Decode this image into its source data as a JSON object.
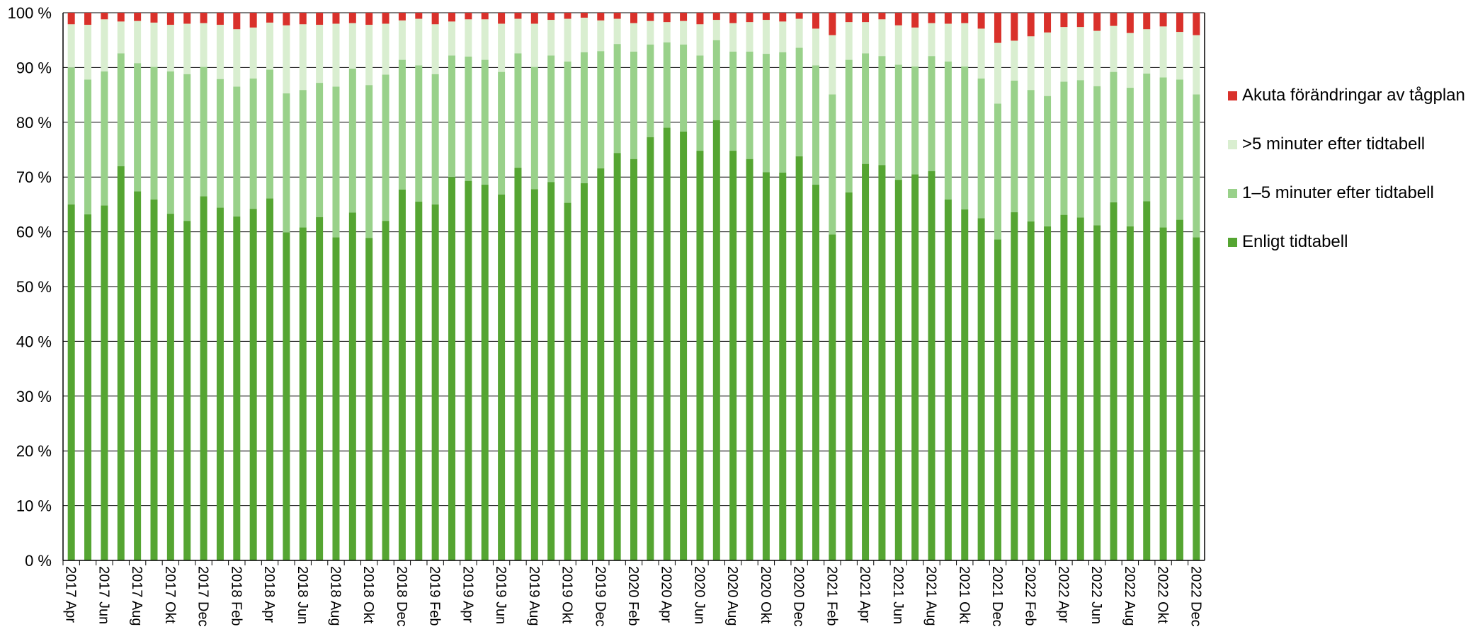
{
  "chart_data": {
    "type": "bar",
    "stacked": true,
    "title": "",
    "xlabel": "",
    "ylabel": "",
    "ylim": [
      0,
      100
    ],
    "y_ticks": [
      "0 %",
      "10 %",
      "20 %",
      "30 %",
      "40 %",
      "50 %",
      "60 %",
      "70 %",
      "80 %",
      "90 %",
      "100 %"
    ],
    "grid": "horizontal",
    "legend_position": "right",
    "categories": [
      "2017 Apr",
      "2017 Maj",
      "2017 Jun",
      "2017 Jul",
      "2017 Aug",
      "2017 Sep",
      "2017 Okt",
      "2017 Nov",
      "2017 Dec",
      "2018 Jan",
      "2018 Feb",
      "2018 Mar",
      "2018 Apr",
      "2018 Maj",
      "2018 Jun",
      "2018 Jul",
      "2018 Aug",
      "2018 Sep",
      "2018 Okt",
      "2018 Nov",
      "2018 Dec",
      "2019 Jan",
      "2019 Feb",
      "2019 Mar",
      "2019 Apr",
      "2019 Maj",
      "2019 Jun",
      "2019 Jul",
      "2019 Aug",
      "2019 Sep",
      "2019 Okt",
      "2019 Nov",
      "2019 Dec",
      "2020 Jan",
      "2020 Feb",
      "2020 Mar",
      "2020 Apr",
      "2020 Maj",
      "2020 Jun",
      "2020 Jul",
      "2020 Aug",
      "2020 Sep",
      "2020 Okt",
      "2020 Nov",
      "2020 Dec",
      "2021 Jan",
      "2021 Feb",
      "2021 Mar",
      "2021 Apr",
      "2021 Maj",
      "2021 Jun",
      "2021 Jul",
      "2021 Aug",
      "2021 Sep",
      "2021 Okt",
      "2021 Nov",
      "2021 Dec",
      "2022 Jan",
      "2022 Feb",
      "2022 Mar",
      "2022 Apr",
      "2022 Maj",
      "2022 Jun",
      "2022 Jul",
      "2022 Aug",
      "2022 Sep",
      "2022 Okt",
      "2022 Nov",
      "2022 Dec"
    ],
    "x_tick_labels": [
      "2017 Apr",
      "2017 Jun",
      "2017 Aug",
      "2017 Okt",
      "2017 Dec",
      "2018 Feb",
      "2018 Apr",
      "2018 Jun",
      "2018 Aug",
      "2018 Okt",
      "2018 Dec",
      "2019 Feb",
      "2019 Apr",
      "2019 Jun",
      "2019 Aug",
      "2019 Okt",
      "2019 Dec",
      "2020 Feb",
      "2020 Apr",
      "2020 Jun",
      "2020 Aug",
      "2020 Okt",
      "2020 Dec",
      "2021 Feb",
      "2021 Apr",
      "2021 Jun",
      "2021 Aug",
      "2021 Okt",
      "2021 Dec",
      "2022 Feb",
      "2022 Apr",
      "2022 Jun",
      "2022 Aug",
      "2022 Okt",
      "2022 Dec"
    ],
    "series": [
      {
        "name": "Enligt tidtabell",
        "color": "#55a532",
        "values": [
          65.0,
          63.2,
          64.8,
          72.0,
          67.4,
          65.9,
          63.3,
          62.0,
          66.5,
          64.4,
          62.8,
          64.2,
          66.1,
          59.9,
          60.8,
          62.7,
          59.0,
          63.5,
          58.9,
          62.0,
          67.7,
          65.5,
          65.0,
          70.0,
          69.3,
          68.6,
          66.8,
          71.7,
          67.8,
          69.1,
          65.3,
          68.9,
          71.6,
          74.4,
          73.3,
          77.3,
          79.0,
          78.3,
          74.8,
          80.4,
          74.8,
          73.3,
          70.9,
          70.8,
          73.8,
          68.6,
          59.5,
          67.2,
          72.4,
          72.2,
          69.5,
          70.5,
          71.1,
          65.9,
          64.1,
          62.5,
          58.6,
          63.6,
          61.9,
          61.0,
          63.1,
          62.6,
          61.2,
          65.4,
          61.0,
          65.6,
          60.8,
          62.2,
          59.0
        ]
      },
      {
        "name": "1–5 minuter efter tidtabell",
        "color": "#99d18a",
        "values": [
          25.0,
          24.6,
          24.5,
          20.6,
          23.4,
          24.2,
          26.0,
          26.8,
          23.6,
          23.5,
          23.7,
          23.8,
          23.5,
          25.4,
          25.1,
          24.5,
          27.5,
          26.3,
          27.9,
          26.7,
          23.7,
          24.9,
          23.8,
          22.2,
          22.7,
          22.8,
          22.4,
          20.9,
          22.3,
          23.1,
          25.8,
          23.9,
          21.4,
          19.9,
          19.6,
          16.9,
          15.6,
          15.9,
          17.4,
          14.6,
          18.1,
          19.6,
          21.6,
          22.0,
          19.8,
          21.8,
          25.6,
          24.2,
          20.2,
          19.9,
          21.0,
          19.7,
          21.0,
          25.2,
          26.1,
          25.5,
          24.8,
          24.0,
          24.0,
          23.8,
          24.3,
          25.1,
          25.4,
          23.8,
          25.3,
          23.3,
          27.4,
          25.6,
          26.1
        ]
      },
      {
        "name": ">5 minuter efter tidtabell",
        "color": "#d9eed0",
        "values": [
          7.9,
          10.0,
          9.5,
          5.8,
          7.7,
          8.1,
          8.5,
          9.2,
          8.0,
          9.9,
          10.5,
          9.3,
          8.6,
          12.4,
          12.0,
          10.6,
          11.5,
          8.3,
          11.0,
          9.3,
          7.2,
          8.5,
          9.1,
          6.2,
          6.8,
          7.4,
          8.8,
          6.3,
          7.9,
          6.5,
          7.8,
          6.3,
          5.6,
          4.6,
          5.2,
          4.3,
          3.7,
          4.3,
          5.7,
          3.7,
          5.2,
          5.4,
          6.2,
          5.6,
          5.3,
          6.7,
          10.8,
          6.9,
          5.7,
          6.7,
          7.2,
          7.1,
          6.0,
          6.9,
          7.9,
          9.1,
          11.1,
          7.3,
          9.8,
          11.6,
          10.0,
          9.7,
          10.1,
          8.4,
          10.0,
          8.1,
          9.3,
          8.7,
          10.8
        ]
      },
      {
        "name": "Akuta förändringar av tågplan",
        "color": "#d9312b",
        "values": [
          2.1,
          2.2,
          1.2,
          1.6,
          1.5,
          1.8,
          2.2,
          2.0,
          1.9,
          2.2,
          3.0,
          2.7,
          1.8,
          2.3,
          2.1,
          2.2,
          2.0,
          1.9,
          2.2,
          2.0,
          1.4,
          1.1,
          2.1,
          1.6,
          1.2,
          1.2,
          2.0,
          1.1,
          2.0,
          1.3,
          1.1,
          0.9,
          1.4,
          1.1,
          1.9,
          1.5,
          1.7,
          1.5,
          2.1,
          1.3,
          1.9,
          1.7,
          1.3,
          1.6,
          1.1,
          2.9,
          4.1,
          1.7,
          1.7,
          1.2,
          2.3,
          2.7,
          1.9,
          2.0,
          1.9,
          2.9,
          5.5,
          5.1,
          4.3,
          3.6,
          2.6,
          2.6,
          3.3,
          2.4,
          3.7,
          3.0,
          2.5,
          3.5,
          4.1
        ]
      }
    ]
  }
}
